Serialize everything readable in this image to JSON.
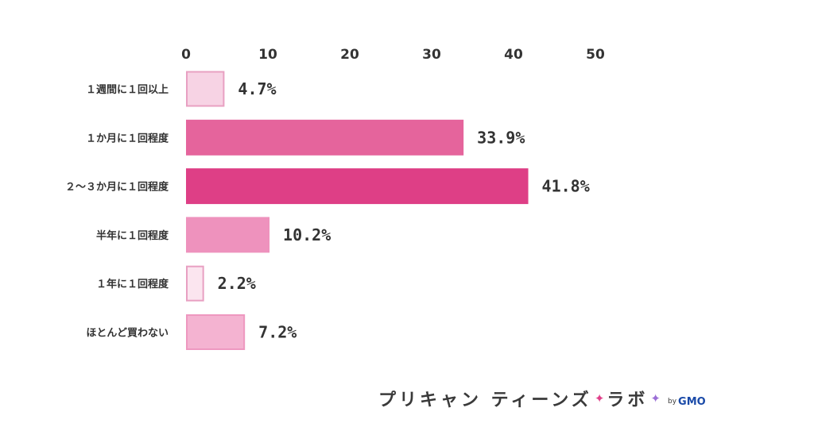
{
  "chart_data": {
    "type": "bar",
    "orientation": "horizontal",
    "categories": [
      "１週間に１回以上",
      "１か月に１回程度",
      "２～３か月に１回程度",
      "半年に１回程度",
      "１年に１回程度",
      "ほとんど買わない"
    ],
    "values": [
      4.7,
      33.9,
      41.8,
      10.2,
      2.2,
      7.2
    ],
    "value_labels": [
      "4.7%",
      "33.9%",
      "41.8%",
      "10.2%",
      "2.2%",
      "7.2%"
    ],
    "xlim": [
      0,
      50
    ],
    "x_ticks": [
      "0",
      "10",
      "20",
      "30",
      "40",
      "50"
    ],
    "x_axis_position": "top",
    "grid": false,
    "bar_fills": [
      "#f7d3e4",
      "#e5649c",
      "#de3f86",
      "#ee92bd",
      "#fbe5ef",
      "#f4b3d1"
    ],
    "bar_strokes": [
      "#e8a0c2",
      "#e5649c",
      "#de3f86",
      "#ee92bd",
      "#e8a0c2",
      "#ee98c0"
    ],
    "title": "",
    "xlabel": "",
    "ylabel": ""
  },
  "brand": {
    "name": "プリキャン ティーンズ",
    "name_end": "ラボ",
    "sparkle": "✦",
    "by": "by",
    "company": "GMO"
  }
}
